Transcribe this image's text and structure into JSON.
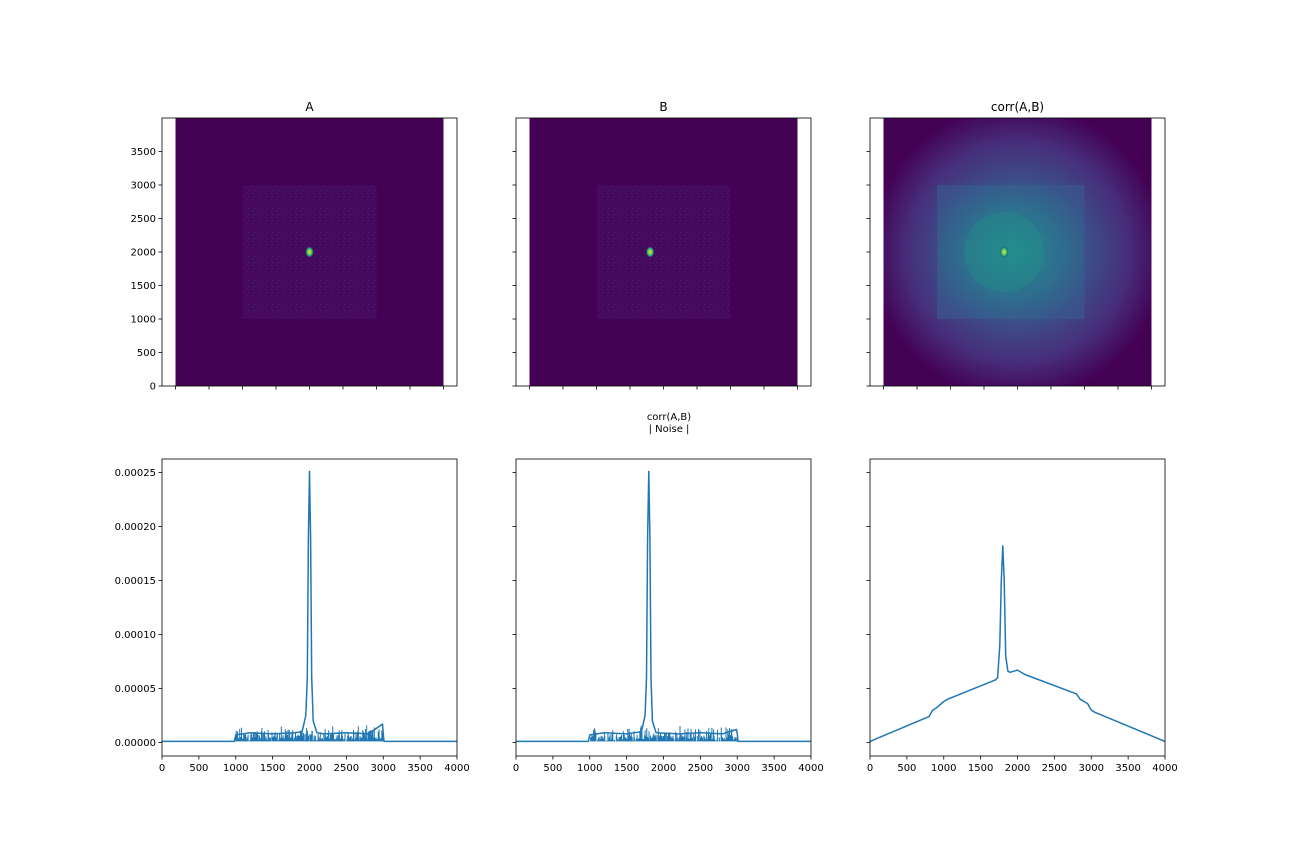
{
  "colors": {
    "viridis_dark": "#440154",
    "viridis_teal": "#21918c",
    "viridis_yellow": "#fde725",
    "line": "#1f77b4",
    "axis": "#000000"
  },
  "chart_data": [
    {
      "id": "img-a",
      "type": "heatmap",
      "title": "A",
      "colormap": "viridis",
      "xlim": [
        0,
        4000
      ],
      "ylim": [
        0,
        4000
      ],
      "xticks": [
        0,
        500,
        1000,
        1500,
        2000,
        2500,
        3000,
        3500,
        4000
      ],
      "yticks": [
        0,
        500,
        1000,
        1500,
        2000,
        2500,
        3000,
        3500
      ],
      "image_extent": [
        0,
        4000,
        0,
        4000
      ],
      "noise_square": [
        1000,
        3000,
        1000,
        3000
      ],
      "peak": [
        2000,
        2000
      ],
      "show_x_tick_labels": false,
      "show_y_tick_labels": true
    },
    {
      "id": "img-b",
      "type": "heatmap",
      "title": "B",
      "colormap": "viridis",
      "xlim": [
        0,
        4000
      ],
      "ylim": [
        0,
        4000
      ],
      "xticks": [
        0,
        500,
        1000,
        1500,
        2000,
        2500,
        3000,
        3500,
        4000
      ],
      "yticks": [
        0,
        500,
        1000,
        1500,
        2000,
        2500,
        3000,
        3500
      ],
      "image_extent": [
        0,
        4000,
        0,
        4000
      ],
      "noise_square": [
        1000,
        3000,
        1000,
        3000
      ],
      "peak": [
        1800,
        2000
      ],
      "show_x_tick_labels": false,
      "show_y_tick_labels": false
    },
    {
      "id": "img-corr",
      "type": "heatmap",
      "title": "corr(A,B)",
      "colormap": "viridis",
      "xlim": [
        0,
        4000
      ],
      "ylim": [
        0,
        4000
      ],
      "xticks": [
        0,
        500,
        1000,
        1500,
        2000,
        2500,
        3000,
        3500,
        4000
      ],
      "yticks": [
        0,
        500,
        1000,
        1500,
        2000,
        2500,
        3000,
        3500
      ],
      "image_extent": [
        0,
        4000,
        0,
        4000
      ],
      "noise_square": [
        800,
        3000,
        1000,
        3000
      ],
      "peak": [
        1800,
        2000
      ],
      "show_x_tick_labels": false,
      "show_y_tick_labels": false
    },
    {
      "id": "line-a",
      "type": "line",
      "xlim": [
        0,
        4000
      ],
      "ylim": [
        -1.25e-05,
        0.0002625
      ],
      "xticks": [
        0,
        500,
        1000,
        1500,
        2000,
        2500,
        3000,
        3500,
        4000
      ],
      "yticks": [
        0.0,
        5e-05,
        0.0001,
        0.00015,
        0.0002,
        0.00025
      ],
      "ytick_labels": [
        "0.00000",
        "0.00005",
        "0.00010",
        "0.00015",
        "0.00020",
        "0.00025"
      ],
      "show_x_tick_labels": true,
      "show_y_tick_labels": true,
      "x": [
        0,
        980,
        1000,
        1200,
        1500,
        1800,
        1900,
        1950,
        1970,
        1985,
        2000,
        2015,
        2030,
        2050,
        2100,
        2200,
        2500,
        2800,
        2990,
        3000,
        3010,
        4000
      ],
      "y": [
        1e-06,
        1e-06,
        7e-06,
        9e-06,
        8e-06,
        9e-06,
        1e-05,
        2.5e-05,
        6e-05,
        0.00019,
        0.000251,
        0.00019,
        6e-05,
        2e-05,
        9e-06,
        8e-06,
        9e-06,
        8e-06,
        1.7e-05,
        8e-06,
        1e-06,
        1e-06
      ],
      "noise": {
        "x_range": [
          1000,
          3000
        ],
        "y_base": 1e-06,
        "y_max": 1.6e-05
      }
    },
    {
      "id": "line-b",
      "type": "line",
      "xlim": [
        0,
        4000
      ],
      "ylim": [
        -1.25e-05,
        0.0002625
      ],
      "xticks": [
        0,
        500,
        1000,
        1500,
        2000,
        2500,
        3000,
        3500,
        4000
      ],
      "yticks": [
        0.0,
        5e-05,
        0.0001,
        0.00015,
        0.0002,
        0.00025
      ],
      "ytick_labels": [
        "0.00000",
        "0.00005",
        "0.00010",
        "0.00015",
        "0.00020",
        "0.00025"
      ],
      "show_x_tick_labels": true,
      "show_y_tick_labels": false,
      "x": [
        0,
        980,
        1000,
        1200,
        1500,
        1700,
        1750,
        1770,
        1785,
        1800,
        1815,
        1830,
        1850,
        1900,
        2200,
        2500,
        2800,
        2990,
        3000,
        3010,
        4000
      ],
      "y": [
        1e-06,
        1e-06,
        7e-06,
        9e-06,
        8e-06,
        1e-05,
        2.5e-05,
        6e-05,
        0.00019,
        0.000251,
        0.00019,
        6e-05,
        2e-05,
        9e-06,
        8e-06,
        9e-06,
        8e-06,
        1.2e-05,
        8e-06,
        1e-06,
        1e-06
      ],
      "noise": {
        "x_range": [
          1000,
          3000
        ],
        "y_base": 1e-06,
        "y_max": 1.6e-05
      }
    },
    {
      "id": "line-corr",
      "type": "line",
      "xlim": [
        0,
        4000
      ],
      "ylim": [
        -1.25e-05,
        0.0002625
      ],
      "xticks": [
        0,
        500,
        1000,
        1500,
        2000,
        2500,
        3000,
        3500,
        4000
      ],
      "yticks": [
        0.0,
        5e-05,
        0.0001,
        0.00015,
        0.0002,
        0.00025
      ],
      "ytick_labels": [
        "0.00000",
        "0.00005",
        "0.00010",
        "0.00015",
        "0.00020",
        "0.00025"
      ],
      "show_x_tick_labels": true,
      "show_y_tick_labels": false,
      "x": [
        0,
        800,
        850,
        900,
        1000,
        1050,
        1700,
        1730,
        1760,
        1780,
        1800,
        1820,
        1840,
        1870,
        1900,
        2000,
        2100,
        2800,
        2850,
        2950,
        3000,
        3050,
        4000
      ],
      "y": [
        1e-06,
        2.4e-05,
        3e-05,
        3.2e-05,
        3.8e-05,
        4e-05,
        5.8e-05,
        6e-05,
        9e-05,
        0.00015,
        0.000182,
        0.00015,
        8e-05,
        6.6e-05,
        6.5e-05,
        6.7e-05,
        6.3e-05,
        4.5e-05,
        4e-05,
        3.6e-05,
        3e-05,
        2.8e-05,
        1e-06
      ]
    }
  ],
  "annotation": {
    "line1": "corr(A,B)",
    "line2": "| Noise |"
  }
}
